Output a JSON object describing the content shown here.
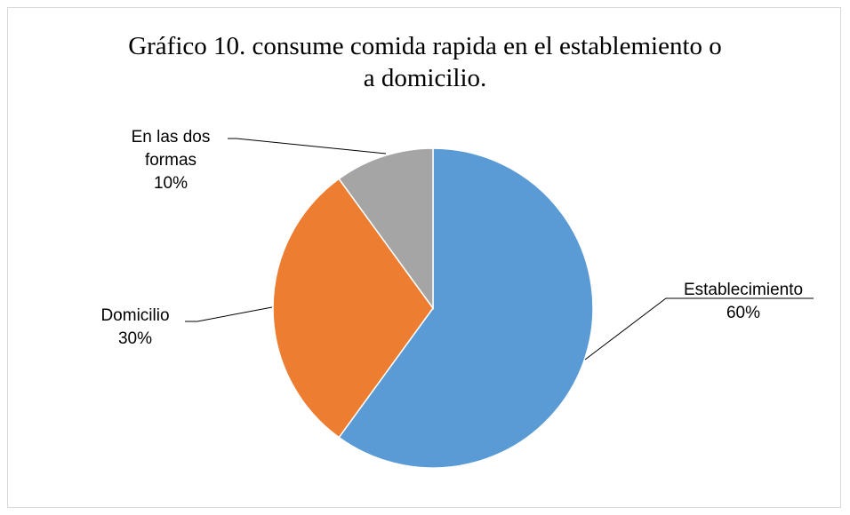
{
  "chart_data": {
    "type": "pie",
    "title_lines": [
      "Gráfico 10. consume comida rapida en el establemiento o",
      "a domicilio."
    ],
    "slices": [
      {
        "label_lines": [
          "Establecimiento"
        ],
        "percent_label": "60%",
        "value": 60,
        "color": "#5b9bd5",
        "slug": "establecimiento"
      },
      {
        "label_lines": [
          "Domicilio"
        ],
        "percent_label": "30%",
        "value": 30,
        "color": "#ed7d31",
        "slug": "domicilio"
      },
      {
        "label_lines": [
          "En las dos",
          "formas"
        ],
        "percent_label": "10%",
        "value": 10,
        "color": "#a5a5a5",
        "slug": "en-las-dos-formas"
      }
    ],
    "start_angle": "12 o'clock",
    "direction": "clockwise",
    "legend": "none",
    "label_leader_lines": true
  }
}
